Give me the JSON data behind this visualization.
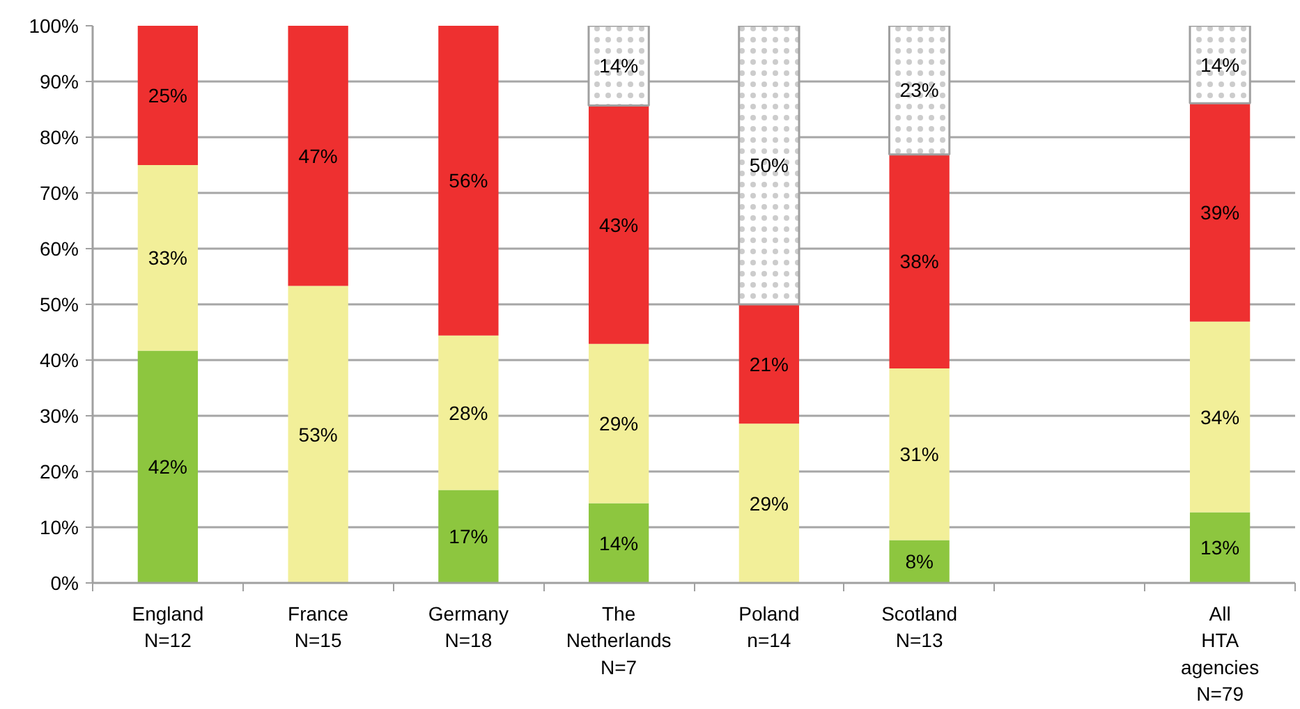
{
  "chart_data": {
    "type": "bar",
    "stacked": true,
    "grid": "y",
    "categories": [
      "England\nN=12",
      "France\nN=15",
      "Germany\nN=18",
      "The\nNetherlands\nN=7",
      "Poland\nn=14",
      "Scotland\nN=13",
      null,
      "All\nHTA\nagencies\nN=79"
    ],
    "ylim": [
      0,
      100
    ],
    "yticks": [
      {
        "value": 0,
        "label": "0%"
      },
      {
        "value": 10,
        "label": "10%"
      },
      {
        "value": 20,
        "label": "20%"
      },
      {
        "value": 30,
        "label": "30%"
      },
      {
        "value": 40,
        "label": "40%"
      },
      {
        "value": 50,
        "label": "50%"
      },
      {
        "value": 60,
        "label": "60%"
      },
      {
        "value": 70,
        "label": "70%"
      },
      {
        "value": 80,
        "label": "80%"
      },
      {
        "value": 90,
        "label": "90%"
      },
      {
        "value": 100,
        "label": "100%"
      }
    ],
    "series": [
      {
        "color": "#8dc63f",
        "values": [
          41.7,
          null,
          16.7,
          14.3,
          null,
          7.7,
          null,
          12.7
        ],
        "value_labels": [
          "42%",
          null,
          "17%",
          "14%",
          null,
          "8%",
          null,
          "13%"
        ]
      },
      {
        "color": "#f2ef99",
        "values": [
          33.3,
          53.3,
          27.7,
          28.6,
          28.6,
          30.8,
          null,
          34.2
        ],
        "value_labels": [
          "33%",
          "53%",
          "28%",
          "29%",
          "29%",
          "31%",
          null,
          "34%"
        ]
      },
      {
        "color": "#ee3030",
        "values": [
          25.0,
          46.7,
          55.6,
          42.8,
          21.4,
          38.4,
          null,
          39.2
        ],
        "value_labels": [
          "25%",
          "47%",
          "56%",
          "43%",
          "21%",
          "38%",
          null,
          "39%"
        ]
      },
      {
        "color": "#ffffff",
        "values": [
          null,
          null,
          null,
          14.3,
          50.0,
          23.1,
          null,
          13.9
        ],
        "value_labels": [
          null,
          null,
          null,
          "14%",
          "50%",
          "23%",
          null,
          "14%"
        ]
      }
    ]
  }
}
